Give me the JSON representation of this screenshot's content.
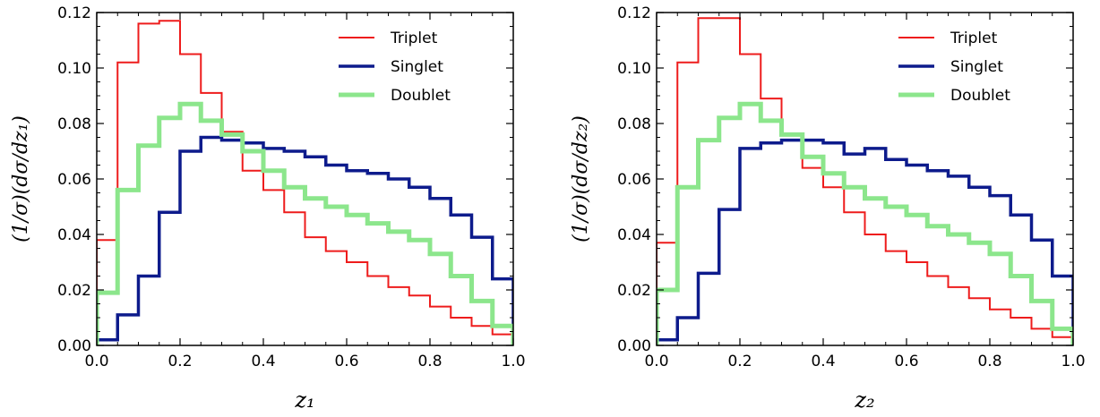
{
  "chart_data": [
    {
      "type": "line",
      "step": "post",
      "title": "",
      "xlabel": "z",
      "xlabel_sub": "1",
      "ylabel_prefix": "(1/σ)(dσ/dz",
      "ylabel_sub": "1",
      "ylabel_suffix": ")",
      "xlim": [
        0.0,
        1.0
      ],
      "ylim": [
        0.0,
        0.12
      ],
      "xticks": [
        "0.0",
        "0.2",
        "0.4",
        "0.6",
        "0.8",
        "1.0"
      ],
      "yticks": [
        "0.00",
        "0.02",
        "0.04",
        "0.06",
        "0.08",
        "0.10",
        "0.12"
      ],
      "legend_position": "top-right",
      "bin_edges": [
        0.0,
        0.05,
        0.1,
        0.15,
        0.2,
        0.25,
        0.3,
        0.35,
        0.4,
        0.45,
        0.5,
        0.55,
        0.6,
        0.65,
        0.7,
        0.75,
        0.8,
        0.85,
        0.9,
        0.95,
        1.0
      ],
      "series": [
        {
          "name": "Triplet",
          "color": "#ee1c1c",
          "width": "thin",
          "values": [
            0.038,
            0.102,
            0.116,
            0.117,
            0.105,
            0.091,
            0.077,
            0.063,
            0.056,
            0.048,
            0.039,
            0.034,
            0.03,
            0.025,
            0.021,
            0.018,
            0.014,
            0.01,
            0.007,
            0.004
          ]
        },
        {
          "name": "Singlet",
          "color": "#0d1b8c",
          "width": "thick",
          "values": [
            0.002,
            0.011,
            0.025,
            0.048,
            0.07,
            0.075,
            0.074,
            0.073,
            0.071,
            0.07,
            0.068,
            0.065,
            0.063,
            0.062,
            0.06,
            0.057,
            0.053,
            0.047,
            0.039,
            0.024,
            0.003
          ]
        },
        {
          "name": "Doublet",
          "color": "#8ce68c",
          "width": "thicker",
          "values": [
            0.019,
            0.056,
            0.072,
            0.082,
            0.087,
            0.081,
            0.076,
            0.07,
            0.063,
            0.057,
            0.053,
            0.05,
            0.047,
            0.044,
            0.041,
            0.038,
            0.033,
            0.025,
            0.016,
            0.007,
            0.0
          ]
        }
      ]
    },
    {
      "type": "line",
      "step": "post",
      "title": "",
      "xlabel": "z",
      "xlabel_sub": "2",
      "ylabel_prefix": "(1/σ)(dσ/dz",
      "ylabel_sub": "2",
      "ylabel_suffix": ")",
      "xlim": [
        0.0,
        1.0
      ],
      "ylim": [
        0.0,
        0.12
      ],
      "xticks": [
        "0.0",
        "0.2",
        "0.4",
        "0.6",
        "0.8",
        "1.0"
      ],
      "yticks": [
        "0.00",
        "0.02",
        "0.04",
        "0.06",
        "0.08",
        "0.10",
        "0.12"
      ],
      "legend_position": "top-right",
      "bin_edges": [
        0.0,
        0.05,
        0.1,
        0.15,
        0.2,
        0.25,
        0.3,
        0.35,
        0.4,
        0.45,
        0.5,
        0.55,
        0.6,
        0.65,
        0.7,
        0.75,
        0.8,
        0.85,
        0.9,
        0.95,
        1.0
      ],
      "series": [
        {
          "name": "Triplet",
          "color": "#ee1c1c",
          "width": "thin",
          "values": [
            0.037,
            0.102,
            0.118,
            0.118,
            0.105,
            0.089,
            0.076,
            0.064,
            0.057,
            0.048,
            0.04,
            0.034,
            0.03,
            0.025,
            0.021,
            0.017,
            0.013,
            0.01,
            0.006,
            0.003
          ]
        },
        {
          "name": "Singlet",
          "color": "#0d1b8c",
          "width": "thick",
          "values": [
            0.002,
            0.01,
            0.026,
            0.049,
            0.071,
            0.073,
            0.074,
            0.074,
            0.073,
            0.069,
            0.071,
            0.067,
            0.065,
            0.063,
            0.061,
            0.057,
            0.054,
            0.047,
            0.038,
            0.025,
            0.003
          ]
        },
        {
          "name": "Doublet",
          "color": "#8ce68c",
          "width": "thicker",
          "values": [
            0.02,
            0.057,
            0.074,
            0.082,
            0.087,
            0.081,
            0.076,
            0.068,
            0.062,
            0.057,
            0.053,
            0.05,
            0.047,
            0.043,
            0.04,
            0.037,
            0.033,
            0.025,
            0.016,
            0.006,
            0.0
          ]
        }
      ]
    }
  ]
}
